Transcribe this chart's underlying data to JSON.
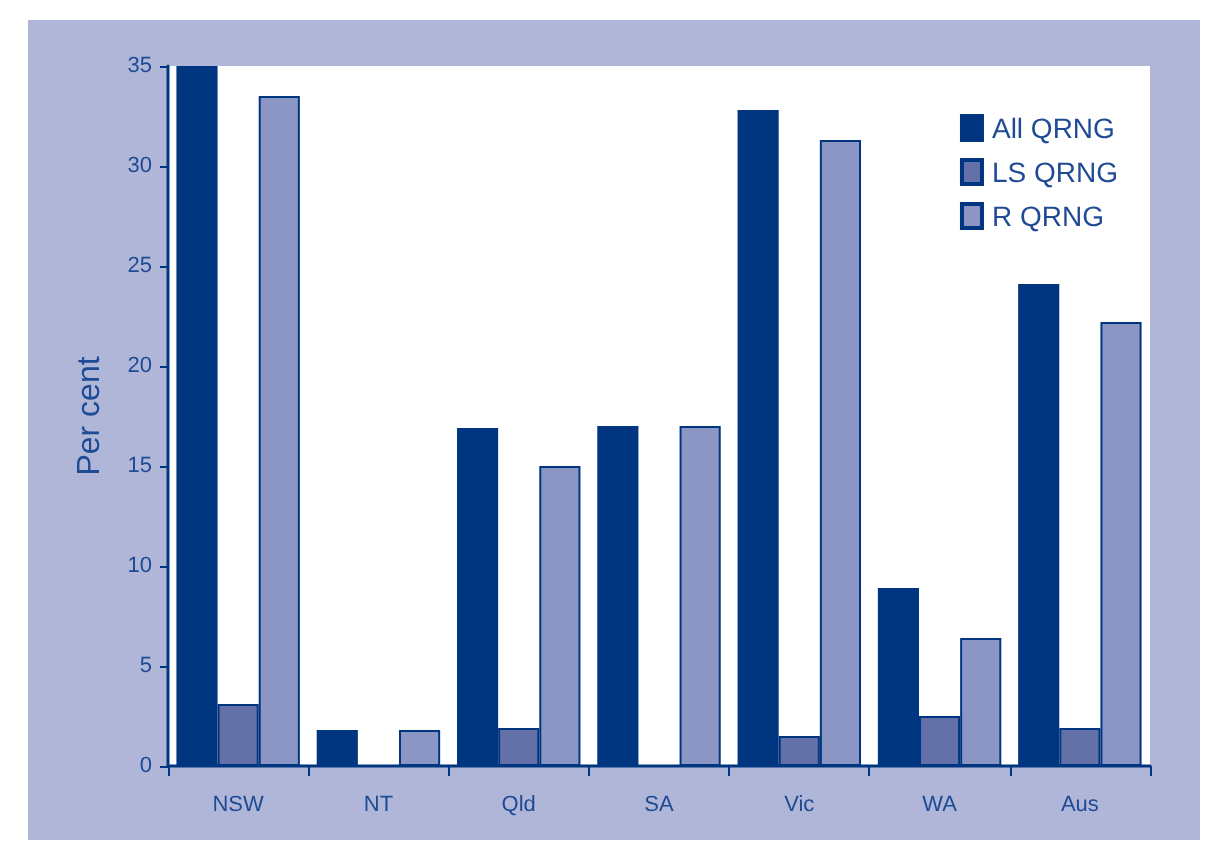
{
  "chart_data": {
    "type": "bar",
    "ylabel": "Per cent",
    "categories": [
      "NSW",
      "NT",
      "Qld",
      "SA",
      "Vic",
      "WA",
      "Aus"
    ],
    "series": [
      {
        "name": "All QRNG",
        "color": "#003580",
        "values": [
          35,
          1.8,
          16.9,
          17,
          32.8,
          8.9,
          24.1
        ]
      },
      {
        "name": "LS QRNG",
        "color": "#6470a8",
        "values": [
          3.1,
          null,
          1.9,
          null,
          1.5,
          2.5,
          1.9
        ]
      },
      {
        "name": "R QRNG",
        "color": "#8c96c4",
        "values": [
          33.5,
          1.8,
          15,
          17,
          31.3,
          6.4,
          22.2
        ]
      }
    ],
    "ylim": [
      0,
      35
    ],
    "yticks": [
      0,
      5,
      10,
      15,
      20,
      25,
      30,
      35
    ],
    "grid": false,
    "legend": "top right"
  }
}
